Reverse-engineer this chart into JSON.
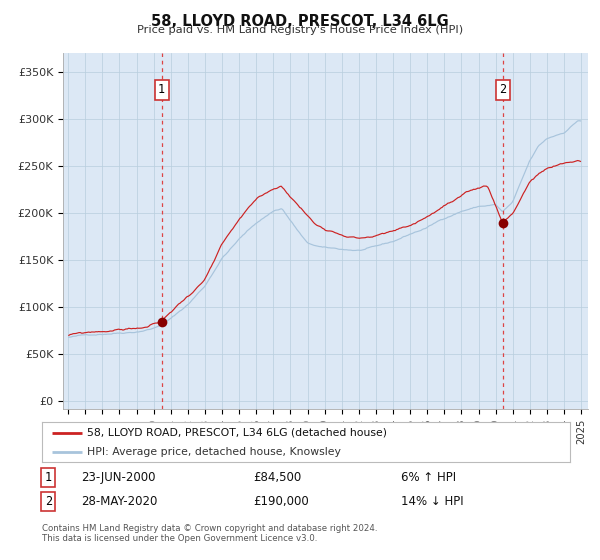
{
  "title": "58, LLOYD ROAD, PRESCOT, L34 6LG",
  "subtitle": "Price paid vs. HM Land Registry's House Price Index (HPI)",
  "bg_color": "#dce8f5",
  "fig_bg_color": "#ffffff",
  "grid_color": "#b8cedd",
  "hpi_color": "#a8c4dc",
  "property_color": "#cc2222",
  "marker_color": "#880000",
  "vline_color": "#dd4444",
  "annotation1_date": 2000.47,
  "annotation1_value": 84500,
  "annotation2_date": 2020.41,
  "annotation2_value": 190000,
  "legend_line1": "58, LLOYD ROAD, PRESCOT, L34 6LG (detached house)",
  "legend_line2": "HPI: Average price, detached house, Knowsley",
  "ann1_text1": "23-JUN-2000",
  "ann1_text2": "£84,500",
  "ann1_text3": "6% ↑ HPI",
  "ann2_text1": "28-MAY-2020",
  "ann2_text2": "£190,000",
  "ann2_text3": "14% ↓ HPI",
  "footnote1": "Contains HM Land Registry data © Crown copyright and database right 2024.",
  "footnote2": "This data is licensed under the Open Government Licence v3.0.",
  "yticks": [
    0,
    50000,
    100000,
    150000,
    200000,
    250000,
    300000,
    350000
  ],
  "ytick_labels": [
    "£0",
    "£50K",
    "£100K",
    "£150K",
    "£200K",
    "£250K",
    "£300K",
    "£350K"
  ],
  "xmin": 1994.7,
  "xmax": 2025.4,
  "ymin": -8000,
  "ymax": 370000,
  "hpi_anchors_x": [
    1995.0,
    1996.0,
    1997.0,
    1998.0,
    1999.0,
    2000.0,
    2001.0,
    2002.0,
    2003.0,
    2004.0,
    2005.0,
    2006.0,
    2007.0,
    2007.5,
    2008.0,
    2009.0,
    2010.0,
    2011.0,
    2012.0,
    2013.0,
    2014.0,
    2015.0,
    2016.0,
    2017.0,
    2018.0,
    2019.0,
    2020.0,
    2020.4,
    2021.0,
    2022.0,
    2022.5,
    2023.0,
    2024.0,
    2024.8
  ],
  "hpi_anchors_y": [
    68000,
    70000,
    72000,
    74000,
    76000,
    80000,
    90000,
    105000,
    125000,
    155000,
    175000,
    192000,
    205000,
    208000,
    195000,
    170000,
    165000,
    163000,
    162000,
    165000,
    170000,
    178000,
    185000,
    195000,
    203000,
    208000,
    210000,
    202000,
    212000,
    255000,
    270000,
    278000,
    285000,
    298000
  ],
  "prop_anchors_x": [
    1995.0,
    1996.0,
    1997.0,
    1998.0,
    1999.5,
    2000.47,
    2001.0,
    2002.0,
    2003.0,
    2004.0,
    2005.0,
    2006.0,
    2007.0,
    2007.5,
    2008.5,
    2009.5,
    2010.0,
    2011.0,
    2012.0,
    2013.0,
    2014.0,
    2015.0,
    2016.0,
    2017.0,
    2018.0,
    2019.0,
    2019.5,
    2020.41,
    2021.0,
    2022.0,
    2022.5,
    2023.0,
    2023.5,
    2024.0,
    2024.8
  ],
  "prop_anchors_y": [
    70000,
    72000,
    74000,
    76000,
    79000,
    84500,
    95000,
    112000,
    130000,
    165000,
    190000,
    210000,
    222000,
    225000,
    205000,
    185000,
    182000,
    178000,
    175000,
    178000,
    182000,
    188000,
    198000,
    210000,
    218000,
    225000,
    228000,
    190000,
    200000,
    235000,
    242000,
    248000,
    250000,
    252000,
    255000
  ]
}
